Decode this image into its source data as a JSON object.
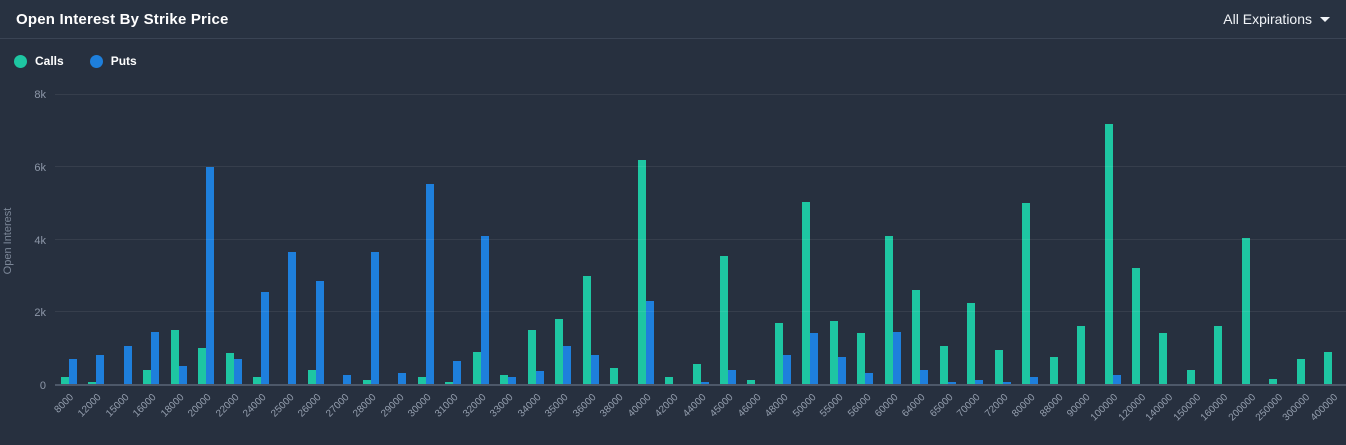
{
  "header": {
    "title": "Open Interest By Strike Price",
    "expiration_selector": "All Expirations"
  },
  "legend": {
    "calls_label": "Calls",
    "puts_label": "Puts"
  },
  "axes": {
    "y_title": "Open Interest"
  },
  "colors": {
    "calls": "#1ec6a2",
    "puts": "#1e7fdc",
    "background": "#27303f",
    "header_background": "#283241",
    "grid": "rgba(255,255,255,0.07)",
    "axis_line": "#4d5869",
    "muted_text": "#8d97a8",
    "bright_text": "#ffffff"
  },
  "chart_data": {
    "type": "bar",
    "title": "Open Interest By Strike Price",
    "xlabel": "",
    "ylabel": "Open Interest",
    "ylim": [
      0,
      8000
    ],
    "grid": true,
    "legend_position": "top-left",
    "yticks": [
      {
        "value": 0,
        "label": "0"
      },
      {
        "value": 2000,
        "label": "2k"
      },
      {
        "value": 4000,
        "label": "4k"
      },
      {
        "value": 6000,
        "label": "6k"
      },
      {
        "value": 8000,
        "label": "8k"
      }
    ],
    "categories": [
      "8000",
      "12000",
      "15000",
      "16000",
      "18000",
      "20000",
      "22000",
      "24000",
      "25000",
      "26000",
      "27000",
      "28000",
      "29000",
      "30000",
      "31000",
      "32000",
      "33000",
      "34000",
      "35000",
      "36000",
      "38000",
      "40000",
      "42000",
      "44000",
      "45000",
      "46000",
      "48000",
      "50000",
      "55000",
      "56000",
      "60000",
      "64000",
      "65000",
      "70000",
      "72000",
      "80000",
      "88000",
      "90000",
      "100000",
      "120000",
      "140000",
      "150000",
      "160000",
      "200000",
      "250000",
      "300000",
      "400000"
    ],
    "series": [
      {
        "name": "Calls",
        "color": "#1ec6a2",
        "values": [
          200,
          50,
          0,
          400,
          1500,
          1000,
          850,
          200,
          0,
          400,
          0,
          100,
          0,
          200,
          50,
          900,
          250,
          1500,
          1800,
          3000,
          450,
          6200,
          200,
          550,
          3550,
          100,
          1700,
          5050,
          1750,
          1400,
          4100,
          2600,
          1050,
          2250,
          950,
          5000,
          750,
          1600,
          7200,
          3200,
          1400,
          400,
          1600,
          4050,
          150,
          700,
          900
        ]
      },
      {
        "name": "Puts",
        "color": "#1e7fdc",
        "values": [
          700,
          800,
          1050,
          1450,
          500,
          6000,
          700,
          2550,
          3650,
          2850,
          250,
          3650,
          300,
          5550,
          650,
          4100,
          200,
          350,
          1050,
          800,
          0,
          2300,
          0,
          50,
          400,
          0,
          800,
          1400,
          750,
          300,
          1450,
          400,
          50,
          100,
          50,
          200,
          0,
          0,
          250,
          0,
          0,
          0,
          0,
          0,
          0,
          0,
          0
        ]
      }
    ]
  }
}
